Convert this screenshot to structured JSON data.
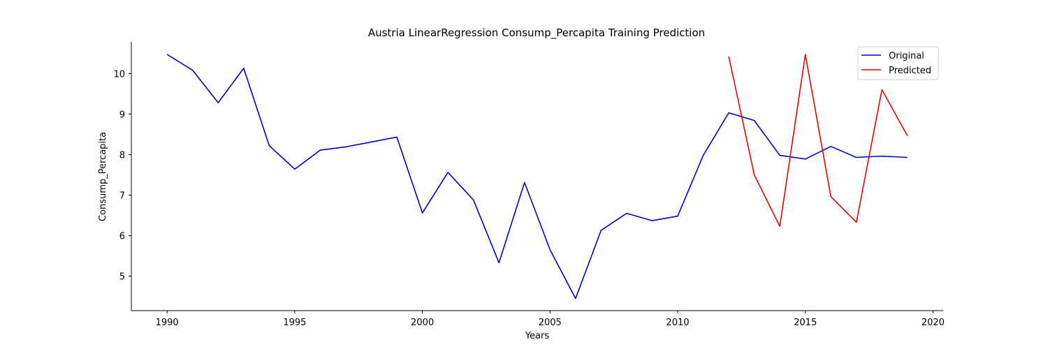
{
  "chart_data": {
    "type": "line",
    "title": "Austria LinearRegression Consump_Percapita Training Prediction",
    "xlabel": "Years",
    "ylabel": "Consump_Percapita",
    "xlim": [
      1988.6,
      2020.4
    ],
    "ylim": [
      4.15,
      10.78
    ],
    "xticks": [
      1990,
      1995,
      2000,
      2005,
      2010,
      2015,
      2020
    ],
    "yticks": [
      5,
      6,
      7,
      8,
      9,
      10
    ],
    "grid": false,
    "legend_position": "top-right",
    "series": [
      {
        "name": "Original",
        "color": "#0000cc",
        "x": [
          1990,
          1991,
          1992,
          1993,
          1994,
          1995,
          1996,
          1997,
          1998,
          1999,
          2000,
          2001,
          2002,
          2003,
          2004,
          2005,
          2006,
          2007,
          2008,
          2009,
          2010,
          2011,
          2012,
          2013,
          2014,
          2015,
          2016,
          2017,
          2018,
          2019
        ],
        "y": [
          10.47,
          10.08,
          9.28,
          10.13,
          8.22,
          7.64,
          8.11,
          8.19,
          8.31,
          8.43,
          6.56,
          7.56,
          6.88,
          5.33,
          7.31,
          5.65,
          4.45,
          6.13,
          6.55,
          6.37,
          6.48,
          7.98,
          9.03,
          8.84,
          7.98,
          7.89,
          8.2,
          7.93,
          7.96,
          7.93
        ]
      },
      {
        "name": "Predicted",
        "color": "#ee0000",
        "x": [
          2012,
          2013,
          2014,
          2015,
          2016,
          2017,
          2018,
          2019
        ],
        "y": [
          10.42,
          7.5,
          6.23,
          10.47,
          6.96,
          6.33,
          9.6,
          8.46
        ]
      }
    ]
  }
}
